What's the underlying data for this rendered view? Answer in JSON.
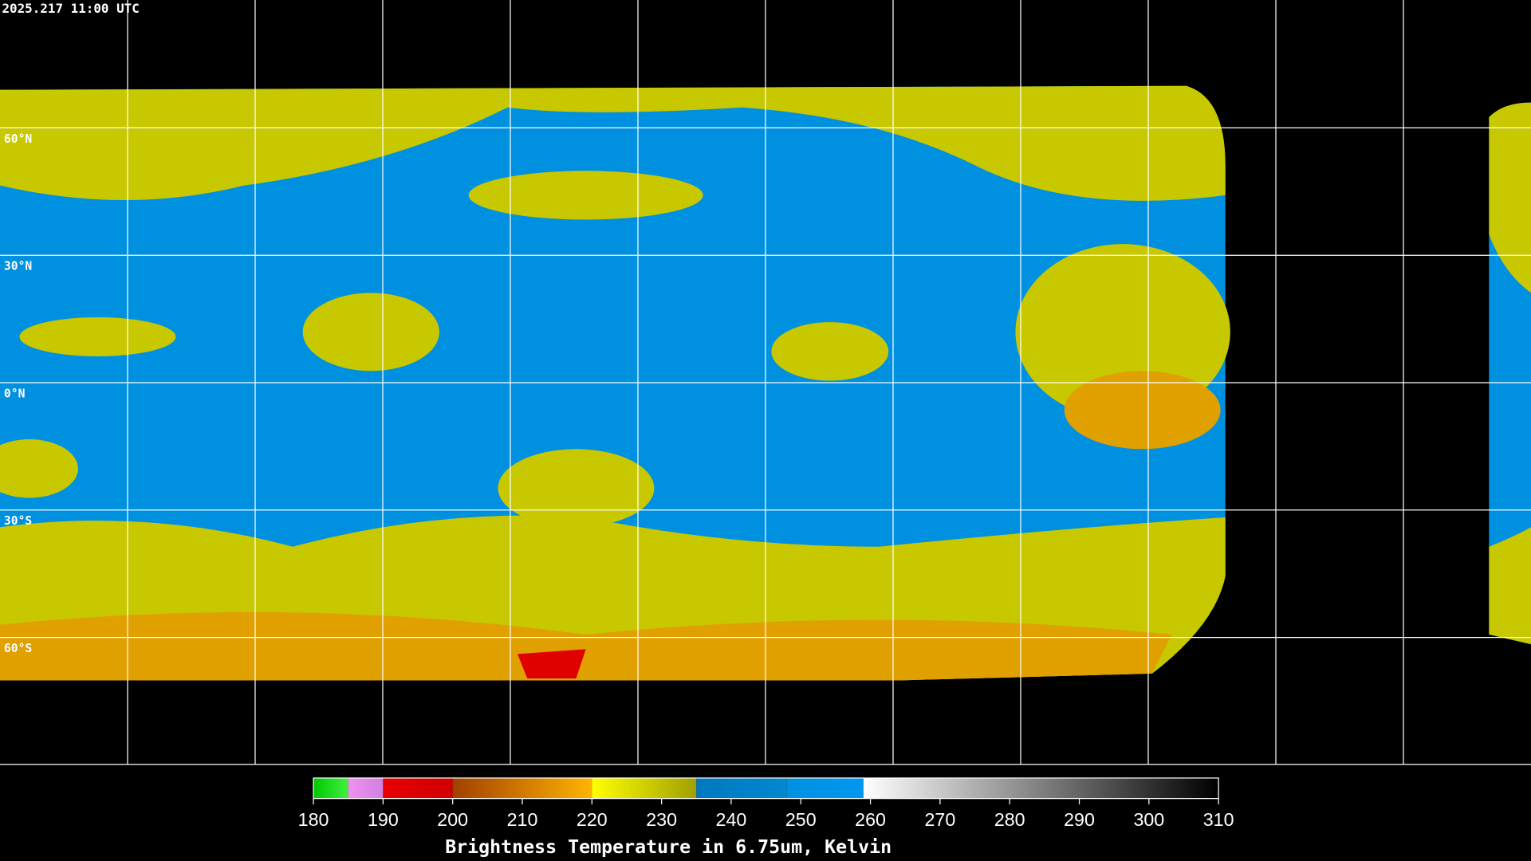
{
  "header": {
    "timestamp": "2025.217 11:00 UTC"
  },
  "map": {
    "latitudes": [
      {
        "value": 60,
        "label": "60°N"
      },
      {
        "value": 30,
        "label": "30°N"
      },
      {
        "value": 0,
        "label": "0°N"
      },
      {
        "value": -30,
        "label": "30°S"
      },
      {
        "value": -60,
        "label": "60°S"
      }
    ]
  },
  "colorbar": {
    "title": "Brightness Temperature in 6.75um, Kelvin",
    "lim": [
      180,
      310
    ],
    "ticks": [
      180,
      190,
      200,
      210,
      220,
      230,
      240,
      250,
      260,
      270,
      280,
      290,
      300,
      310
    ],
    "segments": [
      {
        "from": 180,
        "to": 185,
        "colors": [
          "#00c800",
          "#40f040"
        ]
      },
      {
        "from": 185,
        "to": 190,
        "colors": [
          "#f090f0",
          "#d080e0"
        ]
      },
      {
        "from": 190,
        "to": 200,
        "colors": [
          "#e80000",
          "#d00000"
        ]
      },
      {
        "from": 200,
        "to": 220,
        "colors": [
          "#a04000",
          "#ffb400"
        ]
      },
      {
        "from": 220,
        "to": 235,
        "colors": [
          "#ffff00",
          "#a0a000"
        ]
      },
      {
        "from": 235,
        "to": 248,
        "colors": [
          "#0078c0",
          "#0088d0"
        ]
      },
      {
        "from": 248,
        "to": 259,
        "colors": [
          "#0090e0",
          "#0098f0"
        ]
      },
      {
        "from": 259,
        "to": 310,
        "colors": [
          "#ffffff",
          "#000000"
        ]
      }
    ]
  }
}
